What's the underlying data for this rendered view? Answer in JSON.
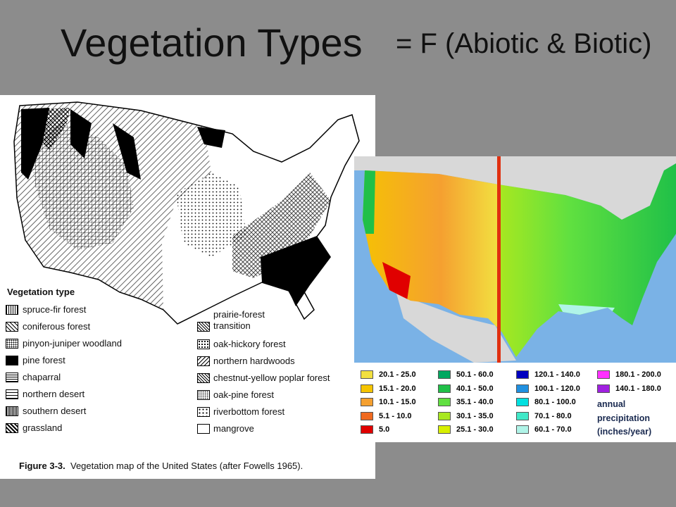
{
  "title": "Vegetation Types",
  "subtitle": "= F (Abiotic & Biotic)",
  "vegetation_map": {
    "legend_title": "Vegetation type",
    "items_left": [
      "spruce-fir forest",
      "coniferous forest",
      "pinyon-juniper woodland",
      "pine forest",
      "chaparral",
      "northern desert",
      "southern desert",
      "grassland"
    ],
    "items_right": [
      "prairie-forest transition",
      "oak-hickory forest",
      "northern hardwoods",
      "chestnut-yellow poplar forest",
      "oak-pine forest",
      "riverbottom forest",
      "mangrove"
    ],
    "caption_figure": "Figure 3-3.",
    "caption_text": "Vegetation map of the United States (after Fowells 1965)."
  },
  "precipitation_map": {
    "legend": [
      {
        "label": "20.1 - 25.0",
        "color": "#f2e040"
      },
      {
        "label": "15.1 - 20.0",
        "color": "#f5c400"
      },
      {
        "label": "10.1 - 15.0",
        "color": "#f5a030"
      },
      {
        "label": "5.1 - 10.0",
        "color": "#f06a20"
      },
      {
        "label": "5.0",
        "color": "#e00000"
      },
      {
        "label": "50.1 - 60.0",
        "color": "#00a860"
      },
      {
        "label": "40.1 - 50.0",
        "color": "#20c048"
      },
      {
        "label": "35.1 - 40.0",
        "color": "#60e040"
      },
      {
        "label": "30.1 - 35.0",
        "color": "#a8e820"
      },
      {
        "label": "25.1 - 30.0",
        "color": "#d8f000"
      },
      {
        "label": "120.1 - 140.0",
        "color": "#0000c0"
      },
      {
        "label": "100.1 - 120.0",
        "color": "#2090e0"
      },
      {
        "label": "80.1 - 100.0",
        "color": "#00e0e0"
      },
      {
        "label": "70.1 - 80.0",
        "color": "#40e8c8"
      },
      {
        "label": "60.1 - 70.0",
        "color": "#b0f4e8"
      },
      {
        "label": "180.1 - 200.0",
        "color": "#ff30ff"
      },
      {
        "label": "140.1 - 180.0",
        "color": "#a020e0"
      }
    ],
    "legend_title": [
      "annual",
      "precipitation",
      "(inches/year)"
    ]
  }
}
